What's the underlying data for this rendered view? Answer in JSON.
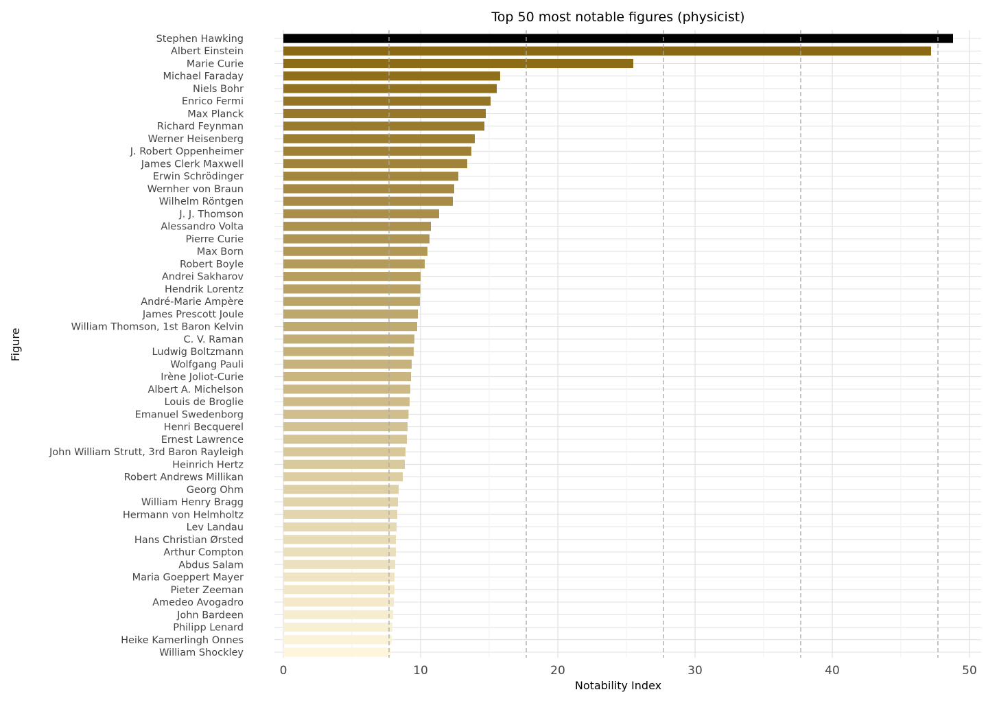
{
  "chart_data": {
    "type": "bar",
    "orientation": "horizontal",
    "title": "Top 50 most notable figures (physicist)",
    "xlabel": "Notability Index",
    "ylabel": "Figure",
    "xlim": [
      0,
      50
    ],
    "x_ticks": [
      0,
      10,
      20,
      30,
      40,
      50
    ],
    "grid": "on",
    "legend": "none",
    "reference_lines": [
      7.7,
      17.7,
      27.7,
      37.7,
      47.7
    ],
    "colors": {
      "highlight": "#000000",
      "gradient_dark": "#8b6914",
      "gradient_light": "#fdf6dc",
      "grid_major": "#e0e0e0",
      "grid_minor": "#f0f0f0",
      "reference_line": "#a8a8a8"
    },
    "categories": [
      "Stephen Hawking",
      "Albert Einstein",
      "Marie Curie",
      "Michael Faraday",
      "Niels Bohr",
      "Enrico Fermi",
      "Max Planck",
      "Richard Feynman",
      "Werner Heisenberg",
      "J. Robert Oppenheimer",
      "James Clerk Maxwell",
      "Erwin Schrödinger",
      "Wernher von Braun",
      "Wilhelm Röntgen",
      "J. J. Thomson",
      "Alessandro Volta",
      "Pierre Curie",
      "Max Born",
      "Robert Boyle",
      "Andrei Sakharov",
      "Hendrik Lorentz",
      "André-Marie Ampère",
      "James Prescott Joule",
      "William Thomson, 1st Baron Kelvin",
      "C. V. Raman",
      "Ludwig Boltzmann",
      "Wolfgang Pauli",
      "Irène Joliot-Curie",
      "Albert A. Michelson",
      "Louis de Broglie",
      "Emanuel Swedenborg",
      "Henri Becquerel",
      "Ernest Lawrence",
      "John William Strutt, 3rd Baron Rayleigh",
      "Heinrich Hertz",
      "Robert Andrews Millikan",
      "Georg Ohm",
      "William Henry Bragg",
      "Hermann von Helmholtz",
      "Lev Landau",
      "Hans Christian Ørsted",
      "Arthur Compton",
      "Abdus Salam",
      "Maria Goeppert Mayer",
      "Pieter Zeeman",
      "Amedeo Avogadro",
      "John Bardeen",
      "Philipp Lenard",
      "Heike Kamerlingh Onnes",
      "William Shockley"
    ],
    "values": [
      48.8,
      47.2,
      25.5,
      15.8,
      15.55,
      15.1,
      14.75,
      14.65,
      13.95,
      13.7,
      13.4,
      12.75,
      12.45,
      12.35,
      11.35,
      10.75,
      10.65,
      10.5,
      10.3,
      10.0,
      9.98,
      9.95,
      9.8,
      9.75,
      9.55,
      9.5,
      9.35,
      9.3,
      9.25,
      9.2,
      9.12,
      9.05,
      9.0,
      8.9,
      8.85,
      8.7,
      8.4,
      8.35,
      8.3,
      8.25,
      8.2,
      8.2,
      8.15,
      8.1,
      8.1,
      8.05,
      8.0,
      7.95,
      7.9,
      7.8
    ]
  }
}
